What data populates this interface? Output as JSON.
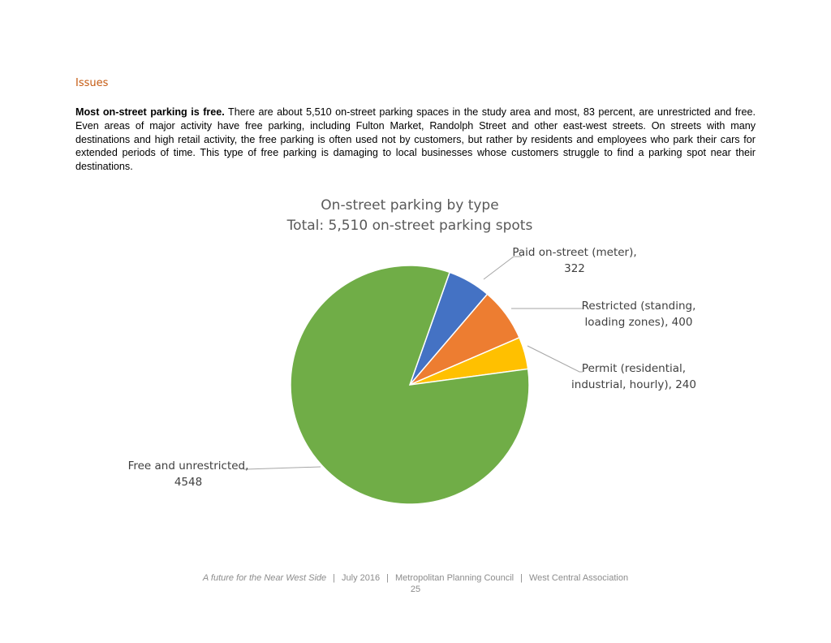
{
  "heading": "Issues",
  "paragraph": {
    "lead": "Most on-street parking is free.",
    "body": " There are about 5,510 on-street parking spaces in the study area and most, 83 percent, are unrestricted and free. Even areas of major activity have free parking, including Fulton Market, Randolph Street and other east-west streets. On streets with many destinations and high retail activity, the free parking is often used not by customers, but rather by residents and employees who park their cars for extended periods of time. This type of free parking is damaging to local businesses whose customers struggle to find a parking spot near their destinations."
  },
  "chart_data": {
    "type": "pie",
    "title": "On-street parking by type",
    "subtitle": "Total: 5,510 on-street parking spots",
    "legend": "none",
    "slices": [
      {
        "label_lines": [
          "Paid on-street (meter),",
          "322"
        ],
        "value": 322,
        "color": "#4472c4"
      },
      {
        "label_lines": [
          "Restricted (standing,",
          "loading zones), 400"
        ],
        "value": 400,
        "color": "#ed7d31"
      },
      {
        "label_lines": [
          "Permit (residential,",
          "industrial, hourly), 240"
        ],
        "value": 240,
        "color": "#ffc000"
      },
      {
        "label_lines": [
          "Free and unrestricted,",
          "4548"
        ],
        "value": 4548,
        "color": "#70ad47"
      }
    ]
  },
  "footer": {
    "doc_title": "A future for the Near West Side",
    "date": "July 2016",
    "org1": "Metropolitan Planning Council",
    "org2": "West Central Association",
    "page": "25"
  }
}
